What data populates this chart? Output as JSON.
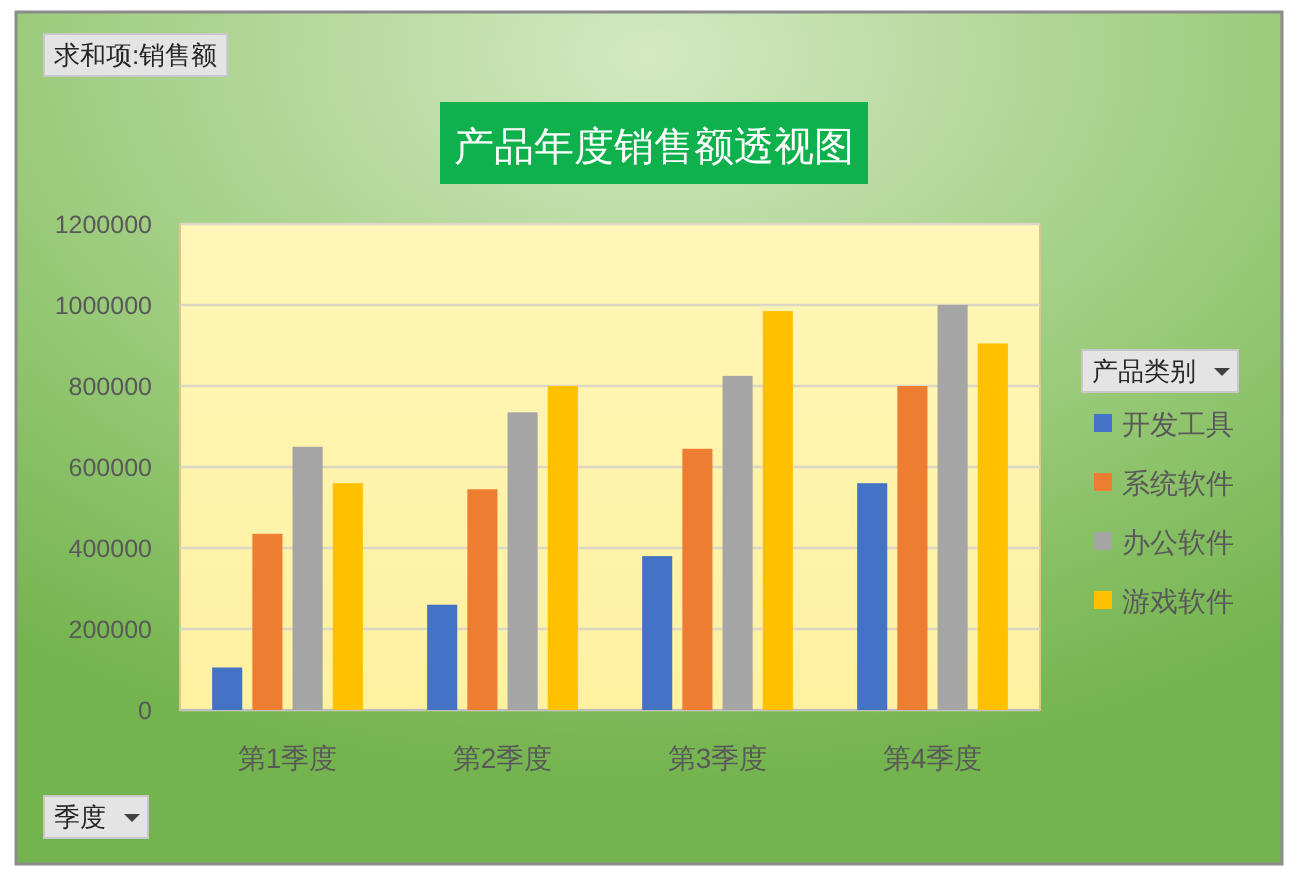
{
  "chart_data": {
    "type": "bar",
    "title": "产品年度销售额透视图",
    "xlabel": "季度",
    "legend_title": "产品类别",
    "annotations": [
      "求和项:销售额"
    ],
    "categories": [
      "第1季度",
      "第2季度",
      "第3季度",
      "第4季度"
    ],
    "series": [
      {
        "name": "开发工具",
        "color": "#4472c4",
        "values": [
          105000,
          260000,
          380000,
          560000
        ]
      },
      {
        "name": "系统软件",
        "color": "#ed7d31",
        "values": [
          435000,
          545000,
          645000,
          800000
        ]
      },
      {
        "name": "办公软件",
        "color": "#a5a5a5",
        "values": [
          650000,
          735000,
          825000,
          1000000
        ]
      },
      {
        "name": "游戏软件",
        "color": "#ffc000",
        "values": [
          560000,
          800000,
          985000,
          905000
        ]
      }
    ],
    "ylim": [
      0,
      1200000
    ],
    "yticks": [
      0,
      200000,
      400000,
      600000,
      800000,
      1000000,
      1200000
    ],
    "grid": "y",
    "legend": "right"
  }
}
